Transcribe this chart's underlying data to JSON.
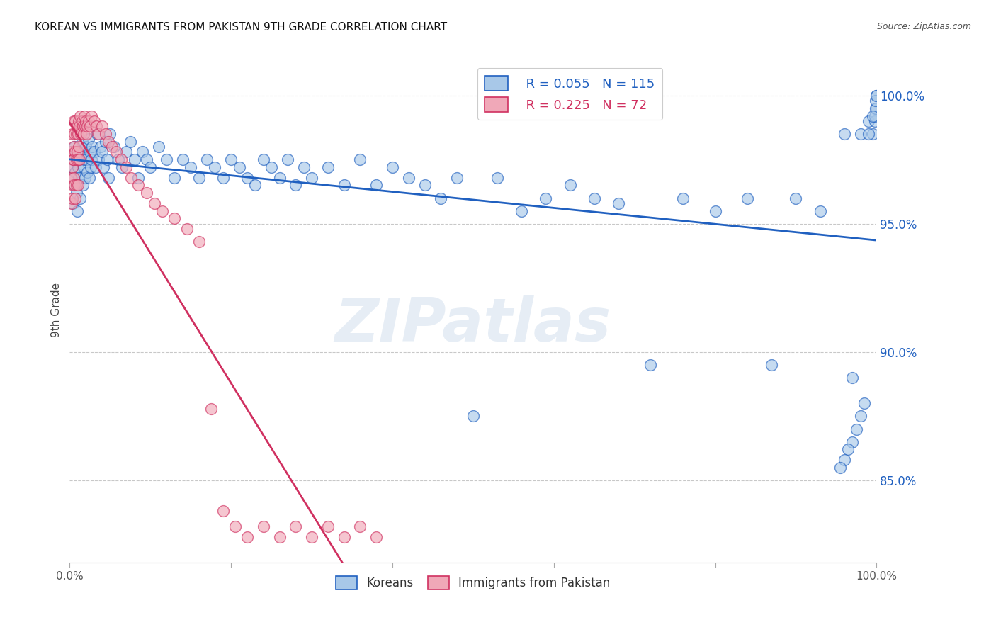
{
  "title": "KOREAN VS IMMIGRANTS FROM PAKISTAN 9TH GRADE CORRELATION CHART",
  "source": "Source: ZipAtlas.com",
  "ylabel": "9th Grade",
  "ytick_labels": [
    "100.0%",
    "95.0%",
    "90.0%",
    "85.0%"
  ],
  "ytick_values": [
    1.0,
    0.95,
    0.9,
    0.85
  ],
  "xmin": 0.0,
  "xmax": 1.0,
  "ymin": 0.818,
  "ymax": 1.015,
  "watermark": "ZIPatlas",
  "legend_korean_r": "R = 0.055",
  "legend_korean_n": "N = 115",
  "legend_pak_r": "R = 0.225",
  "legend_pak_n": "N = 72",
  "korean_color": "#a8c8e8",
  "pak_color": "#f0a8b8",
  "korean_line_color": "#2060c0",
  "pak_line_color": "#d03060",
  "background_color": "#ffffff",
  "grid_color": "#bbbbbb",
  "korean_scatter_x": [
    0.002,
    0.003,
    0.004,
    0.005,
    0.006,
    0.006,
    0.007,
    0.008,
    0.008,
    0.009,
    0.01,
    0.01,
    0.011,
    0.012,
    0.013,
    0.014,
    0.015,
    0.016,
    0.017,
    0.018,
    0.019,
    0.02,
    0.021,
    0.022,
    0.023,
    0.024,
    0.025,
    0.026,
    0.027,
    0.028,
    0.03,
    0.032,
    0.034,
    0.036,
    0.038,
    0.04,
    0.042,
    0.044,
    0.046,
    0.048,
    0.05,
    0.055,
    0.06,
    0.065,
    0.07,
    0.075,
    0.08,
    0.085,
    0.09,
    0.095,
    0.1,
    0.11,
    0.12,
    0.13,
    0.14,
    0.15,
    0.16,
    0.17,
    0.18,
    0.19,
    0.2,
    0.21,
    0.22,
    0.23,
    0.24,
    0.25,
    0.26,
    0.27,
    0.28,
    0.29,
    0.3,
    0.32,
    0.34,
    0.36,
    0.38,
    0.4,
    0.42,
    0.44,
    0.46,
    0.48,
    0.5,
    0.53,
    0.56,
    0.59,
    0.62,
    0.65,
    0.68,
    0.72,
    0.76,
    0.8,
    0.84,
    0.87,
    0.9,
    0.93,
    0.96,
    0.97,
    0.98,
    0.99,
    0.995,
    0.998,
    1.0,
    0.998,
    0.999,
    1.0,
    0.999,
    1.0,
    0.995,
    0.99,
    0.985,
    0.98,
    0.975,
    0.97,
    0.965,
    0.96,
    0.955
  ],
  "korean_scatter_y": [
    0.968,
    0.972,
    0.958,
    0.975,
    0.965,
    0.98,
    0.97,
    0.962,
    0.978,
    0.955,
    0.985,
    0.972,
    0.968,
    0.975,
    0.96,
    0.978,
    0.982,
    0.965,
    0.972,
    0.975,
    0.968,
    0.98,
    0.975,
    0.97,
    0.983,
    0.968,
    0.978,
    0.972,
    0.975,
    0.98,
    0.978,
    0.972,
    0.985,
    0.975,
    0.98,
    0.978,
    0.972,
    0.982,
    0.975,
    0.968,
    0.985,
    0.98,
    0.975,
    0.972,
    0.978,
    0.982,
    0.975,
    0.968,
    0.978,
    0.975,
    0.972,
    0.98,
    0.975,
    0.968,
    0.975,
    0.972,
    0.968,
    0.975,
    0.972,
    0.968,
    0.975,
    0.972,
    0.968,
    0.965,
    0.975,
    0.972,
    0.968,
    0.975,
    0.965,
    0.972,
    0.968,
    0.972,
    0.965,
    0.975,
    0.965,
    0.972,
    0.968,
    0.965,
    0.96,
    0.968,
    0.875,
    0.968,
    0.955,
    0.96,
    0.965,
    0.96,
    0.958,
    0.895,
    0.96,
    0.955,
    0.96,
    0.895,
    0.96,
    0.955,
    0.985,
    0.89,
    0.985,
    0.99,
    0.985,
    0.99,
    0.995,
    0.992,
    0.995,
    1.0,
    0.998,
    1.0,
    0.992,
    0.985,
    0.88,
    0.875,
    0.87,
    0.865,
    0.862,
    0.858,
    0.855
  ],
  "pak_scatter_x": [
    0.001,
    0.002,
    0.002,
    0.003,
    0.003,
    0.003,
    0.004,
    0.004,
    0.005,
    0.005,
    0.005,
    0.005,
    0.006,
    0.006,
    0.007,
    0.007,
    0.007,
    0.008,
    0.008,
    0.008,
    0.009,
    0.009,
    0.01,
    0.01,
    0.01,
    0.011,
    0.011,
    0.012,
    0.012,
    0.013,
    0.014,
    0.015,
    0.016,
    0.017,
    0.018,
    0.019,
    0.02,
    0.021,
    0.022,
    0.023,
    0.025,
    0.027,
    0.03,
    0.033,
    0.036,
    0.04,
    0.044,
    0.048,
    0.052,
    0.058,
    0.064,
    0.07,
    0.076,
    0.085,
    0.095,
    0.105,
    0.115,
    0.13,
    0.145,
    0.16,
    0.175,
    0.19,
    0.205,
    0.22,
    0.24,
    0.26,
    0.28,
    0.3,
    0.32,
    0.34,
    0.36,
    0.38
  ],
  "pak_scatter_y": [
    0.968,
    0.958,
    0.978,
    0.96,
    0.972,
    0.985,
    0.965,
    0.975,
    0.98,
    0.968,
    0.99,
    0.975,
    0.985,
    0.965,
    0.99,
    0.978,
    0.96,
    0.985,
    0.975,
    0.965,
    0.978,
    0.988,
    0.985,
    0.975,
    0.965,
    0.99,
    0.98,
    0.988,
    0.975,
    0.992,
    0.985,
    0.99,
    0.988,
    0.985,
    0.992,
    0.988,
    0.99,
    0.985,
    0.988,
    0.99,
    0.988,
    0.992,
    0.99,
    0.988,
    0.985,
    0.988,
    0.985,
    0.982,
    0.98,
    0.978,
    0.975,
    0.972,
    0.968,
    0.965,
    0.962,
    0.958,
    0.955,
    0.952,
    0.948,
    0.943,
    0.878,
    0.838,
    0.832,
    0.828,
    0.832,
    0.828,
    0.832,
    0.828,
    0.832,
    0.828,
    0.832,
    0.828
  ]
}
